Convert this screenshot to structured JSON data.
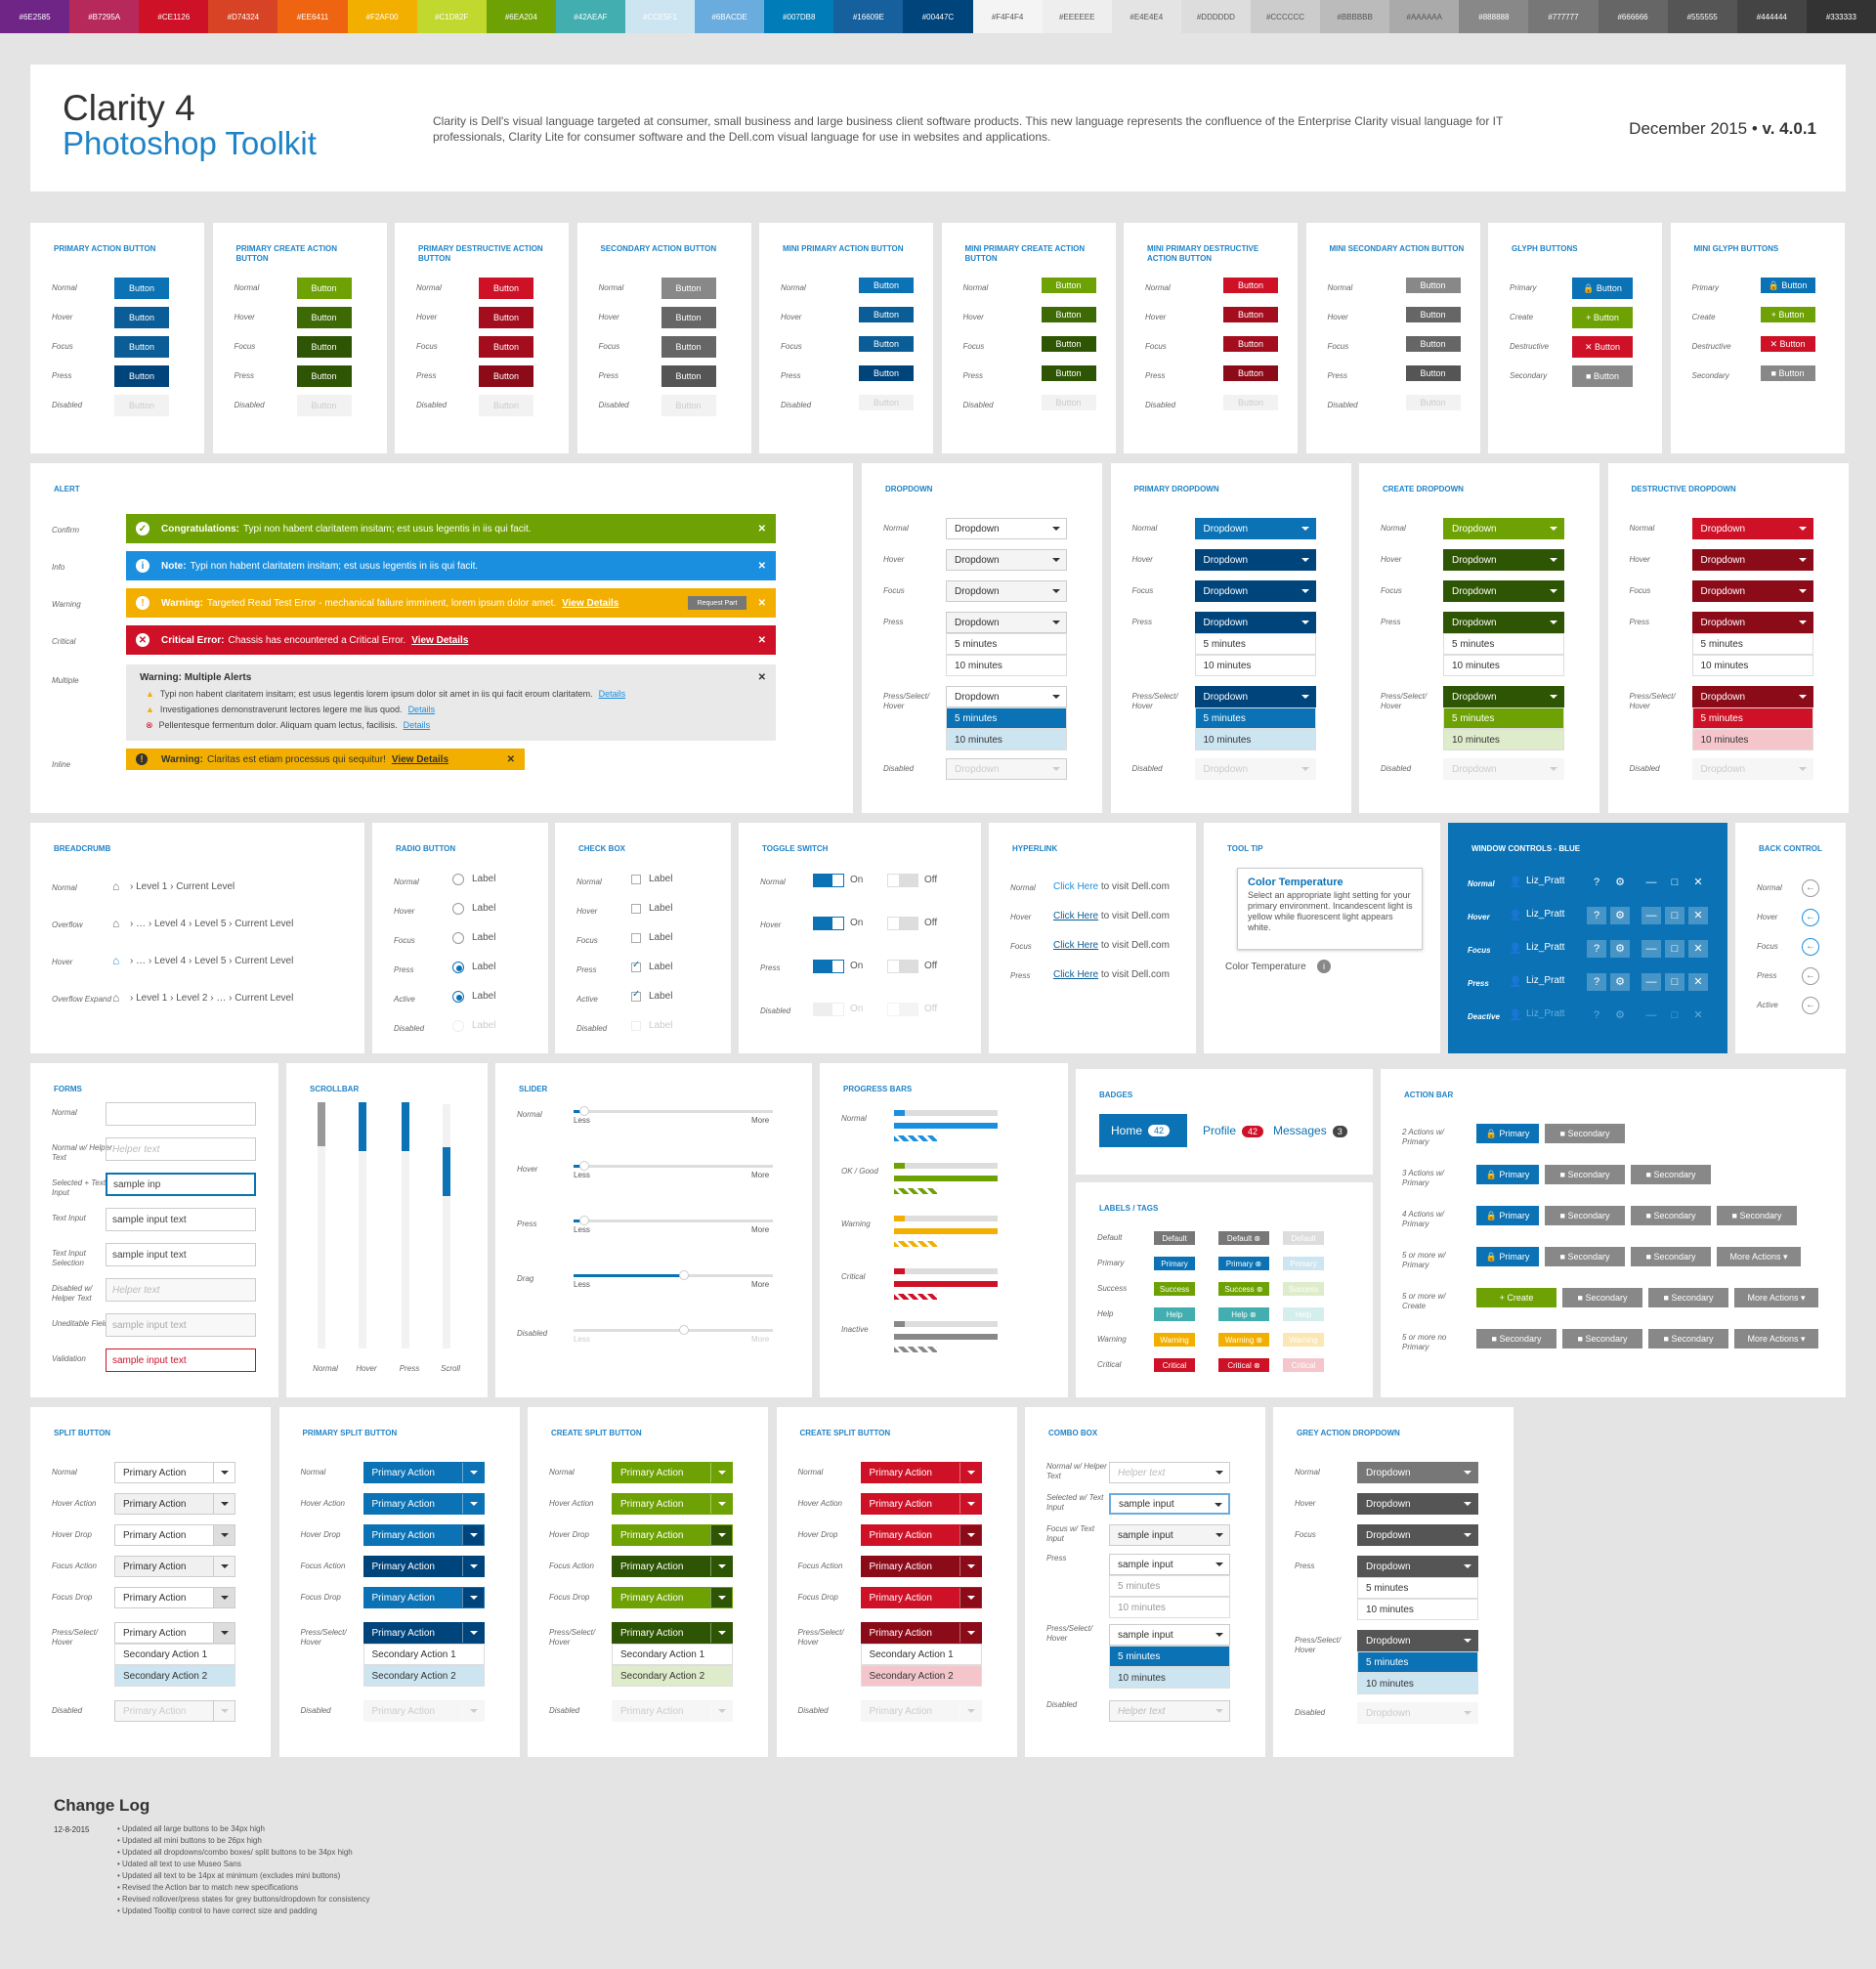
{
  "swatches": [
    "#6E2585",
    "#B7295A",
    "#CE1126",
    "#D74324",
    "#EE6411",
    "#F2AF00",
    "#C1D82F",
    "#6EA204",
    "#42AEAF",
    "#CCE5F1",
    "#6BACDE",
    "#007DB8",
    "#16609E",
    "#00447C",
    "#F4F4F4",
    "#EEEEEE",
    "#E4E4E4",
    "#DDDDDD",
    "#CCCCCC",
    "#BBBBBB",
    "#AAAAAA",
    "#888888",
    "#777777",
    "#666666",
    "#555555",
    "#444444",
    "#333333"
  ],
  "header": {
    "title": "Clarity 4",
    "subtitle": "Photoshop Toolkit",
    "description": "Clarity is Dell's visual language targeted at consumer, small business and large business client software products. This new language represents the confluence of the Enterprise Clarity visual language for IT professionals, Clarity Lite for consumer software and the Dell.com visual language for use in websites and applications.",
    "date": "December 2015 •",
    "version": "v. 4.0.1"
  },
  "states": [
    "Normal",
    "Hover",
    "Focus",
    "Press",
    "Disabled"
  ],
  "btn_label": "Button",
  "button_cards": [
    {
      "title": "Primary Action Button",
      "colors": [
        "#0a72b5",
        "#0a5d96",
        "#0a5d96",
        "#00447c",
        "#f2f2f2"
      ]
    },
    {
      "title": "Primary Create Action Button",
      "colors": [
        "#6ea204",
        "#3d6a04",
        "#2e5503",
        "#2e5503",
        "#f2f2f2"
      ]
    },
    {
      "title": "Primary Destructive Action Button",
      "colors": [
        "#ce1126",
        "#a30d1e",
        "#a30d1e",
        "#8c0b19",
        "#f2f2f2"
      ]
    },
    {
      "title": "Secondary Action Button",
      "colors": [
        "#888888",
        "#666666",
        "#666666",
        "#555555",
        "#f2f2f2"
      ]
    },
    {
      "title": "Mini Primary Action Button",
      "colors": [
        "#0a72b5",
        "#0a5d96",
        "#0a5d96",
        "#00447c",
        "#f2f2f2"
      ]
    },
    {
      "title": "Mini Primary Create Action Button",
      "colors": [
        "#6ea204",
        "#3d6a04",
        "#2e5503",
        "#2e5503",
        "#f2f2f2"
      ]
    },
    {
      "title": "Mini Primary Destructive Action Button",
      "colors": [
        "#ce1126",
        "#a30d1e",
        "#a30d1e",
        "#8c0b19",
        "#f2f2f2"
      ]
    },
    {
      "title": "Mini Secondary Action Button",
      "colors": [
        "#888888",
        "#666666",
        "#666666",
        "#555555",
        "#f2f2f2"
      ]
    }
  ],
  "glyph": {
    "title": "Glyph Buttons",
    "mini_title": "Mini Glyph Buttons",
    "rows": [
      {
        "label": "Primary",
        "color": "#0a72b5",
        "glyph": "🔒"
      },
      {
        "label": "Create",
        "color": "#6ea204",
        "glyph": "+"
      },
      {
        "label": "Destructive",
        "color": "#ce1126",
        "glyph": "✕"
      },
      {
        "label": "Secondary",
        "color": "#888888",
        "glyph": "■"
      }
    ]
  },
  "alert": {
    "title": "Alert",
    "rows": [
      {
        "label": "Confirm",
        "color": "#6ea204",
        "icon": "✓",
        "bold": "Congratulations:",
        "text": "Typi non habent claritatem insitam; est usus legentis in iis qui facit.",
        "link": ""
      },
      {
        "label": "Info",
        "color": "#1a8fe0",
        "icon": "i",
        "bold": "Note:",
        "text": "Typi non habent claritatem insitam; est usus legentis in iis qui facit.",
        "link": ""
      },
      {
        "label": "Warning",
        "color": "#f2af00",
        "icon": "!",
        "bold": "Warning:",
        "text": "Targeted Read Test Error - mechanical failure imminent, lorem ipsum dolor amet.",
        "link": "View Details"
      },
      {
        "label": "Critical",
        "color": "#ce1126",
        "icon": "✕",
        "bold": "Critical Error:",
        "text": "Chassis has encountered a Critical Error.",
        "link": "View Details"
      }
    ],
    "request_part": "Request Part",
    "multiple_label": "Multiple",
    "multiple_title": "Warning: Multiple Alerts",
    "multiple_items": [
      {
        "text": "Typi non habent claritatem insitam; est usus legentis lorem ipsum dolor sit amet in iis qui facit eroum claritatem.",
        "link": "Details"
      },
      {
        "text": "Investigationes demonstraverunt lectores legere me lius quod.",
        "link": "Details"
      },
      {
        "text": "Pellentesque fermentum dolor. Aliquam quam lectus, facilisis.",
        "link": "Details"
      }
    ],
    "inline_label": "Inline",
    "inline_bold": "Warning:",
    "inline_text": "Claritas est etiam processus qui sequitur!",
    "inline_link": "View Details"
  },
  "dropdowns": {
    "states": [
      "Normal",
      "Hover",
      "Focus",
      "Press",
      "Press/Select/ Hover",
      "Disabled"
    ],
    "value": "Dropdown",
    "opt1": "5 minutes",
    "opt2": "10 minutes",
    "cards": [
      {
        "title": "Dropdown",
        "main": "#ffffff",
        "dark": "#ffffff",
        "sel": "#0a72b5",
        "hov": "#cce5f1",
        "text": "#333333"
      },
      {
        "title": "Primary Dropdown",
        "main": "#0a72b5",
        "dark": "#00447c",
        "sel": "#0a72b5",
        "hov": "#cce5f1",
        "text": "#ffffff"
      },
      {
        "title": "Create Dropdown",
        "main": "#6ea204",
        "dark": "#2e5503",
        "sel": "#6ea204",
        "hov": "#dfeccb",
        "text": "#ffffff"
      },
      {
        "title": "Destructive Dropdown",
        "main": "#ce1126",
        "dark": "#8c0b19",
        "sel": "#ce1126",
        "hov": "#f4c6cc",
        "text": "#ffffff"
      }
    ]
  },
  "breadcrumb": {
    "title": "Breadcrumb",
    "rows": [
      {
        "label": "Normal",
        "text": "› Level 1 › Current Level"
      },
      {
        "label": "Overflow",
        "text": "› … › Level 4 › Level 5 › Current Level"
      },
      {
        "label": "Hover",
        "text": "› … › Level 4 › Level 5 › Current Level"
      },
      {
        "label": "Overflow Expand",
        "text": "› Level 1 › Level 2 › … › Current Level"
      }
    ]
  },
  "radio": {
    "title": "Radio Button",
    "states": [
      "Normal",
      "Hover",
      "Focus",
      "Press",
      "Active",
      "Disabled"
    ],
    "label": "Label"
  },
  "check": {
    "title": "Check Box",
    "states": [
      "Normal",
      "Hover",
      "Focus",
      "Press",
      "Active",
      "Disabled"
    ],
    "label": "Label"
  },
  "toggle": {
    "title": "Toggle Switch",
    "states": [
      "Normal",
      "Hover",
      "Press",
      "Disabled"
    ],
    "on": "On",
    "off": "Off"
  },
  "hyperlink": {
    "title": "Hyperlink",
    "states": [
      "Normal",
      "Hover",
      "Focus",
      "Press"
    ],
    "link": "Click Here",
    "text": "to visit Dell.com"
  },
  "tooltip": {
    "title": "Tool Tip",
    "head": "Color Temperature",
    "body": "Select an appropriate light setting for your primary environment. Incandescent light is yellow while fluorescent light appears white.",
    "label": "Color Temperature"
  },
  "window": {
    "title": "Window Controls - Blue",
    "states": [
      "Normal",
      "Hover",
      "Focus",
      "Press",
      "Deactive"
    ],
    "user": "Liz_Pratt"
  },
  "back": {
    "title": "Back Control",
    "states": [
      "Normal",
      "Hover",
      "Focus",
      "Press",
      "Active"
    ]
  },
  "forms": {
    "title": "Forms",
    "rows": [
      {
        "label": "Normal",
        "value": "",
        "ph": ""
      },
      {
        "label": "Normal w/ Helper Text",
        "value": "",
        "ph": "Helper text"
      },
      {
        "label": "Selected + Text Input",
        "value": "sample inp",
        "ph": ""
      },
      {
        "label": "Text Input",
        "value": "sample input text",
        "ph": ""
      },
      {
        "label": "Text Input Selection",
        "value": "sample input text",
        "ph": ""
      },
      {
        "label": "Disabled w/ Helper Text",
        "value": "",
        "ph": "Helper text"
      },
      {
        "label": "Uneditable Field",
        "value": "sample input text",
        "ph": ""
      },
      {
        "label": "Validation",
        "value": "sample input text",
        "ph": ""
      }
    ]
  },
  "scrollbar": {
    "title": "Scrollbar",
    "labels": [
      "Normal",
      "Hover",
      "Press",
      "Scroll"
    ]
  },
  "slider": {
    "title": "Slider",
    "states": [
      "Normal",
      "Hover",
      "Press",
      "Drag",
      "Disabled"
    ],
    "less": "Less",
    "more": "More",
    "values": [
      0.05,
      0.05,
      0.05,
      0.55,
      0.55
    ]
  },
  "progress": {
    "title": "Progress Bars",
    "rows": [
      {
        "label": "Normal",
        "color": "#1a8fe0",
        "p": 0.1
      },
      {
        "label": "OK / Good",
        "color": "#6ea204",
        "p": 0.1
      },
      {
        "label": "Warning",
        "color": "#f2af00",
        "p": 0.1
      },
      {
        "label": "Critical",
        "color": "#ce1126",
        "p": 0.1
      },
      {
        "label": "Inactive",
        "color": "#888888",
        "p": 0.1
      }
    ]
  },
  "badges": {
    "title": "Badges",
    "home": "Home",
    "home_n": "42",
    "profile": "Profile",
    "profile_n": "42",
    "messages": "Messages",
    "messages_n": "3"
  },
  "labels": {
    "title": "Labels / Tags",
    "rows": [
      {
        "label": "Default",
        "text": "Default",
        "color": "#777777",
        "light": "#dddddd"
      },
      {
        "label": "Primary",
        "text": "Primary",
        "color": "#0a72b5",
        "light": "#cce5f1"
      },
      {
        "label": "Success",
        "text": "Success",
        "color": "#6ea204",
        "light": "#dfeccb"
      },
      {
        "label": "Help",
        "text": "Help",
        "color": "#42aeaf",
        "light": "#d4eeee"
      },
      {
        "label": "Warning",
        "text": "Warning",
        "color": "#f2af00",
        "light": "#fbe7b3"
      },
      {
        "label": "Critical",
        "text": "Critical",
        "color": "#ce1126",
        "light": "#f4c6cc"
      }
    ]
  },
  "actionbar": {
    "title": "Action Bar",
    "rows": [
      {
        "label": "2 Actions w/ Primary",
        "btns": [
          "p:Primary",
          "s:Secondary"
        ]
      },
      {
        "label": "3 Actions w/ Primary",
        "btns": [
          "p:Primary",
          "s:Secondary",
          "s:Secondary"
        ]
      },
      {
        "label": "4 Actions w/ Primary",
        "btns": [
          "p:Primary",
          "s:Secondary",
          "s:Secondary",
          "s:Secondary"
        ]
      },
      {
        "label": "5 or more w/ Primary",
        "btns": [
          "p:Primary",
          "s:Secondary",
          "s:Secondary",
          "s:More Actions ▾"
        ]
      },
      {
        "label": "5 or more w/ Create",
        "btns": [
          "c:+ Create",
          "s:Secondary",
          "s:Secondary",
          "s:More Actions ▾"
        ]
      },
      {
        "label": "5 or more no Primary",
        "btns": [
          "s:Secondary",
          "s:Secondary",
          "s:Secondary",
          "s:More Actions ▾"
        ]
      }
    ]
  },
  "split": {
    "states": [
      "Normal",
      "Hover Action",
      "Hover Drop",
      "Focus Action",
      "Focus Drop",
      "Press/Select/ Hover",
      "Disabled"
    ],
    "value": "Primary Action",
    "opt1": "Secondary Action 1",
    "opt2": "Secondary Action 2",
    "cards": [
      {
        "title": "Split Button",
        "main": "#ffffff",
        "dark": "#dddddd",
        "text": "#333333",
        "sel": "#cce5f1"
      },
      {
        "title": "Primary Split Button",
        "main": "#0a72b5",
        "dark": "#00447c",
        "text": "#ffffff",
        "sel": "#cce5f1"
      },
      {
        "title": "Create Split Button",
        "main": "#6ea204",
        "dark": "#2e5503",
        "text": "#ffffff",
        "sel": "#dfeccb"
      },
      {
        "title": "Create Split Button",
        "main": "#ce1126",
        "dark": "#8c0b19",
        "text": "#ffffff",
        "sel": "#f4c6cc"
      }
    ]
  },
  "combo": {
    "title": "Combo Box",
    "states": [
      "Normal w/ Helper Text",
      "Selected w/ Text Input",
      "Focus w/ Text Input",
      "Press",
      "Press/Select/ Hover",
      "Disabled"
    ],
    "ph": "Helper text",
    "value": "sample input",
    "opt1": "5 minutes",
    "opt2": "10 minutes"
  },
  "grey": {
    "title": "Grey Action Dropdown",
    "states": [
      "Normal",
      "Hover",
      "Focus",
      "Press",
      "Press/Select/ Hover",
      "Disabled"
    ],
    "value": "Dropdown",
    "opt1": "5 minutes",
    "opt2": "10 minutes"
  },
  "changelog": {
    "title": "Change Log",
    "date": "12-8-2015",
    "items": [
      "• Updated all large buttons to be 34px high",
      "• Updated all mini buttons to be 26px high",
      "• Updated all dropdowns/combo boxes/ split buttons to be 34px high",
      "• Udated all text to use Museo Sans",
      "• Updated all text to be 14px at minimum (excludes mini buttons)",
      "• Revised the Action bar to match new specifications",
      "• Revised rollover/press states for grey buttons/dropdown for consistency",
      "• Updated Tooltip control to have correct size and padding"
    ]
  }
}
